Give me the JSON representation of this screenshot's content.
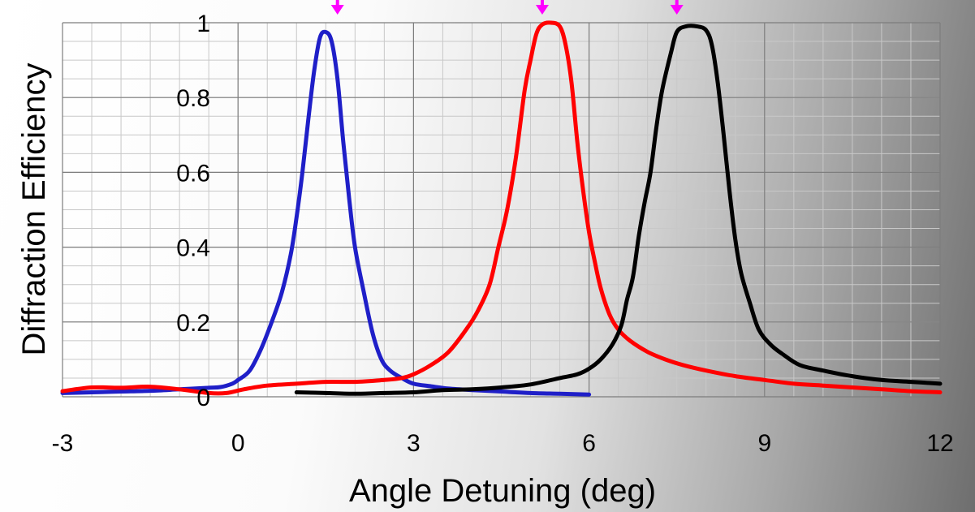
{
  "chart_data": {
    "type": "line",
    "title": "",
    "xlabel": "Angle Detuning (deg)",
    "ylabel": "Diffraction Efficiency",
    "xlim": [
      -3,
      12
    ],
    "ylim": [
      0,
      1
    ],
    "x_ticks": [
      -3,
      0,
      3,
      6,
      9,
      12
    ],
    "x_tick_labels": [
      "-3",
      "0",
      "3",
      "6",
      "9",
      "12"
    ],
    "y_ticks": [
      0,
      0.2,
      0.4,
      0.6,
      0.8,
      1
    ],
    "y_tick_labels": [
      "0",
      "0.2",
      "0.4",
      "0.6",
      "0.8",
      "1"
    ],
    "grid": true,
    "minor_grid": {
      "x_step": 0.5,
      "y_step": 0.05
    },
    "legend": "none",
    "series": [
      {
        "color": "#1f1fc8",
        "points": [
          [
            -3,
            0.01
          ],
          [
            -2.5,
            0.012
          ],
          [
            -2,
            0.014
          ],
          [
            -1.5,
            0.016
          ],
          [
            -1,
            0.02
          ],
          [
            -0.5,
            0.024
          ],
          [
            -0.3,
            0.026
          ],
          [
            -0.1,
            0.035
          ],
          [
            0,
            0.045
          ],
          [
            0.2,
            0.07
          ],
          [
            0.4,
            0.13
          ],
          [
            0.6,
            0.21
          ],
          [
            0.75,
            0.28
          ],
          [
            0.9,
            0.38
          ],
          [
            1.0,
            0.48
          ],
          [
            1.1,
            0.6
          ],
          [
            1.2,
            0.74
          ],
          [
            1.3,
            0.87
          ],
          [
            1.4,
            0.96
          ],
          [
            1.5,
            0.975
          ],
          [
            1.6,
            0.95
          ],
          [
            1.7,
            0.85
          ],
          [
            1.8,
            0.68
          ],
          [
            1.9,
            0.53
          ],
          [
            2.0,
            0.4
          ],
          [
            2.15,
            0.28
          ],
          [
            2.3,
            0.17
          ],
          [
            2.45,
            0.1
          ],
          [
            2.6,
            0.07
          ],
          [
            2.8,
            0.05
          ],
          [
            3.0,
            0.035
          ],
          [
            3.3,
            0.028
          ],
          [
            3.6,
            0.022
          ],
          [
            4.0,
            0.018
          ],
          [
            4.5,
            0.014
          ],
          [
            5.0,
            0.01
          ],
          [
            5.5,
            0.008
          ],
          [
            6.0,
            0.006
          ]
        ]
      },
      {
        "color": "#ff0000",
        "points": [
          [
            -3,
            0.015
          ],
          [
            -2.5,
            0.025
          ],
          [
            -2,
            0.024
          ],
          [
            -1.5,
            0.027
          ],
          [
            -1.0,
            0.02
          ],
          [
            -0.5,
            0.01
          ],
          [
            -0.2,
            0.01
          ],
          [
            0.1,
            0.02
          ],
          [
            0.5,
            0.03
          ],
          [
            1.0,
            0.035
          ],
          [
            1.5,
            0.04
          ],
          [
            2.0,
            0.04
          ],
          [
            2.5,
            0.045
          ],
          [
            2.8,
            0.05
          ],
          [
            3.0,
            0.06
          ],
          [
            3.3,
            0.085
          ],
          [
            3.6,
            0.12
          ],
          [
            3.9,
            0.18
          ],
          [
            4.1,
            0.23
          ],
          [
            4.3,
            0.3
          ],
          [
            4.45,
            0.4
          ],
          [
            4.6,
            0.5
          ],
          [
            4.75,
            0.64
          ],
          [
            4.9,
            0.82
          ],
          [
            5.0,
            0.9
          ],
          [
            5.1,
            0.97
          ],
          [
            5.2,
            0.995
          ],
          [
            5.35,
            1.0
          ],
          [
            5.5,
            0.99
          ],
          [
            5.6,
            0.94
          ],
          [
            5.7,
            0.84
          ],
          [
            5.8,
            0.68
          ],
          [
            5.9,
            0.55
          ],
          [
            6.0,
            0.44
          ],
          [
            6.1,
            0.36
          ],
          [
            6.2,
            0.29
          ],
          [
            6.35,
            0.22
          ],
          [
            6.5,
            0.18
          ],
          [
            6.7,
            0.15
          ],
          [
            7.0,
            0.12
          ],
          [
            7.3,
            0.1
          ],
          [
            7.6,
            0.085
          ],
          [
            8.0,
            0.07
          ],
          [
            8.5,
            0.055
          ],
          [
            9.0,
            0.045
          ],
          [
            9.5,
            0.035
          ],
          [
            10.0,
            0.03
          ],
          [
            10.5,
            0.025
          ],
          [
            11.0,
            0.02
          ],
          [
            11.5,
            0.015
          ],
          [
            12.0,
            0.012
          ]
        ]
      },
      {
        "color": "#000000",
        "points": [
          [
            1.0,
            0.012
          ],
          [
            1.5,
            0.01
          ],
          [
            2.0,
            0.008
          ],
          [
            2.5,
            0.01
          ],
          [
            3.0,
            0.012
          ],
          [
            3.5,
            0.018
          ],
          [
            4.0,
            0.02
          ],
          [
            4.5,
            0.025
          ],
          [
            5.0,
            0.033
          ],
          [
            5.5,
            0.05
          ],
          [
            5.8,
            0.06
          ],
          [
            6.0,
            0.075
          ],
          [
            6.2,
            0.1
          ],
          [
            6.4,
            0.14
          ],
          [
            6.55,
            0.19
          ],
          [
            6.65,
            0.26
          ],
          [
            6.75,
            0.32
          ],
          [
            6.85,
            0.43
          ],
          [
            6.95,
            0.52
          ],
          [
            7.05,
            0.6
          ],
          [
            7.15,
            0.72
          ],
          [
            7.25,
            0.82
          ],
          [
            7.4,
            0.92
          ],
          [
            7.5,
            0.975
          ],
          [
            7.65,
            0.99
          ],
          [
            7.85,
            0.99
          ],
          [
            8.0,
            0.98
          ],
          [
            8.1,
            0.94
          ],
          [
            8.2,
            0.84
          ],
          [
            8.3,
            0.7
          ],
          [
            8.4,
            0.55
          ],
          [
            8.5,
            0.42
          ],
          [
            8.6,
            0.33
          ],
          [
            8.75,
            0.25
          ],
          [
            8.9,
            0.18
          ],
          [
            9.1,
            0.14
          ],
          [
            9.3,
            0.115
          ],
          [
            9.6,
            0.085
          ],
          [
            10.0,
            0.07
          ],
          [
            10.5,
            0.055
          ],
          [
            11.0,
            0.045
          ],
          [
            11.5,
            0.04
          ],
          [
            12.0,
            0.035
          ]
        ]
      }
    ],
    "peak_markers": {
      "color": "#ff00ff",
      "x": [
        1.7,
        5.2,
        7.5
      ]
    }
  }
}
